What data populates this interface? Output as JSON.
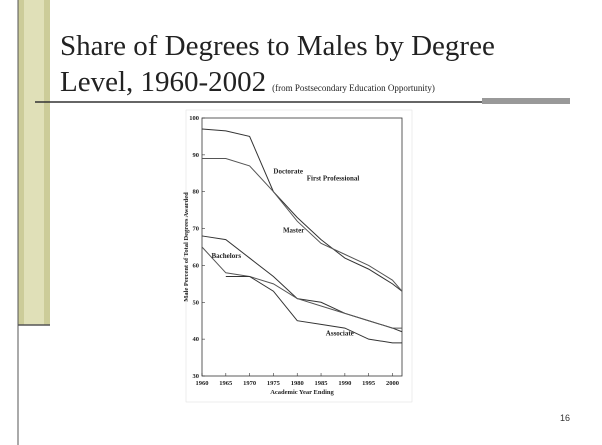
{
  "slide": {
    "title_line1": "Share of Degrees to Males by Degree",
    "title_line2": "Level, 1960-2002",
    "source": "(from Postsecondary Education Opportunity)",
    "page_number": "16"
  },
  "chart_data": {
    "type": "line",
    "ylabel": "Male Percent of Total Degrees Awarded",
    "xlabel": "Academic Year Ending",
    "x": [
      1960,
      1965,
      1970,
      1975,
      1980,
      1985,
      1990,
      1995,
      2000,
      2002
    ],
    "series": [
      {
        "name": "First Professional",
        "color": "#333333",
        "values": [
          97,
          96.5,
          95,
          80,
          73,
          67,
          62,
          59,
          55,
          53
        ]
      },
      {
        "name": "Doctorate",
        "color": "#555555",
        "values": [
          89,
          89,
          87,
          80,
          72,
          66,
          63,
          60,
          56,
          53
        ]
      },
      {
        "name": "Master",
        "color": "#333333",
        "values": [
          68,
          67,
          62,
          57,
          51,
          50,
          47,
          45,
          43,
          42
        ]
      },
      {
        "name": "Bachelors",
        "color": "#555555",
        "values": [
          65,
          58,
          57,
          55,
          51,
          49,
          47,
          45,
          43,
          43
        ]
      },
      {
        "name": "Associate",
        "color": "#333333",
        "values": [
          null,
          57,
          57,
          53,
          45,
          44,
          43,
          40,
          39,
          39
        ]
      }
    ],
    "xlim": [
      1960,
      2002
    ],
    "xticks": [
      1960,
      1965,
      1970,
      1975,
      1980,
      1985,
      1990,
      1995,
      2000
    ],
    "ylim": [
      30,
      100
    ],
    "yticks": [
      30,
      40,
      50,
      60,
      70,
      80,
      90,
      100
    ]
  }
}
